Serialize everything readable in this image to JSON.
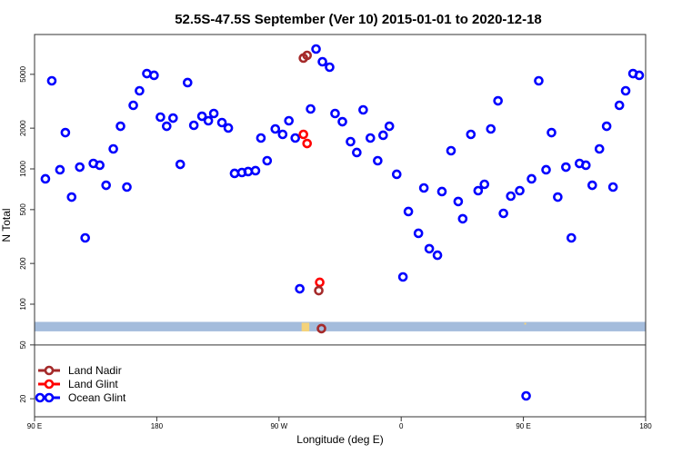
{
  "chart_data": {
    "type": "scatter",
    "title": "52.5S-47.5S September (Ver 10)   2015-01-01 to 2020-12-18",
    "xlabel": "Longitude (deg E)",
    "ylabel": "N Total",
    "xlim": [
      90,
      540
    ],
    "ylim": [
      14.7,
      9800
    ],
    "yscale": "log",
    "x_ticks": [
      {
        "value": 90,
        "label": "90 E"
      },
      {
        "value": 180,
        "label": "180"
      },
      {
        "value": 270,
        "label": "90 W"
      },
      {
        "value": 360,
        "label": "0"
      },
      {
        "value": 450,
        "label": "90 E"
      },
      {
        "value": 540,
        "label": "180"
      }
    ],
    "y_ticks": [
      {
        "value": 20,
        "label": "20"
      },
      {
        "value": 50,
        "label": "50"
      },
      {
        "value": 100,
        "label": "100"
      },
      {
        "value": 200,
        "label": "200"
      },
      {
        "value": 500,
        "label": "500"
      },
      {
        "value": 1000,
        "label": "1000"
      },
      {
        "value": 2000,
        "label": "2000"
      },
      {
        "value": 5000,
        "label": "5000"
      }
    ],
    "reference_line": 50,
    "band": {
      "range": [
        63,
        74
      ],
      "color": "#a4bcdc",
      "marker_color": "#f5d37a",
      "markers_lon": [
        288,
        289,
        290,
        291,
        452
      ]
    },
    "legend_position": "bottom-left",
    "series": [
      {
        "name": "Land Nadir",
        "color": "#a52a2a",
        "points": [
          [
            288,
            6590
          ],
          [
            290.7,
            6900
          ],
          [
            299.3,
            126
          ],
          [
            301.3,
            66
          ]
        ]
      },
      {
        "name": "Land Glint",
        "color": "#ff0000",
        "points": [
          [
            288,
            1799
          ],
          [
            290.7,
            1541
          ],
          [
            300,
            145
          ]
        ]
      },
      {
        "name": "Ocean Glint",
        "color": "#0000ff",
        "points": [
          [
            98,
            844
          ],
          [
            102.7,
            4477
          ],
          [
            108.7,
            985
          ],
          [
            112.7,
            1854
          ],
          [
            117.3,
            619
          ],
          [
            123.3,
            1031
          ],
          [
            127.3,
            309
          ],
          [
            133.3,
            1097
          ],
          [
            138,
            1064
          ],
          [
            142.7,
            757
          ],
          [
            148,
            1405
          ],
          [
            153.3,
            2067
          ],
          [
            158,
            734
          ],
          [
            162.7,
            2950
          ],
          [
            167.3,
            3777
          ],
          [
            172.7,
            5065
          ],
          [
            178,
            4914
          ],
          [
            182.7,
            2413
          ],
          [
            187.3,
            2067
          ],
          [
            192,
            2375
          ],
          [
            197.3,
            1080
          ],
          [
            202.7,
            4342
          ],
          [
            207.3,
            2100
          ],
          [
            213.3,
            2450
          ],
          [
            218,
            2268
          ],
          [
            222,
            2567
          ],
          [
            228,
            2199
          ],
          [
            232.7,
            2005
          ],
          [
            237.3,
            926
          ],
          [
            242.7,
            940
          ],
          [
            247.3,
            955
          ],
          [
            252.7,
            970
          ],
          [
            256.7,
            1691
          ],
          [
            261.3,
            1149
          ],
          [
            267.3,
            1974
          ],
          [
            272.7,
            1799
          ],
          [
            277.3,
            2268
          ],
          [
            282,
            1691
          ],
          [
            285.3,
            130
          ],
          [
            293.3,
            2773
          ],
          [
            297.3,
            7690
          ],
          [
            302,
            6194
          ],
          [
            307.3,
            5646
          ],
          [
            311.3,
            2567
          ],
          [
            316.7,
            2233
          ],
          [
            322.7,
            1590
          ],
          [
            327.3,
            1321
          ],
          [
            332,
            2731
          ],
          [
            337.3,
            1691
          ],
          [
            342.7,
            1149
          ],
          [
            346.7,
            1772
          ],
          [
            351.3,
            2067
          ],
          [
            356.7,
            912
          ],
          [
            361.3,
            159
          ],
          [
            365.3,
            484
          ],
          [
            372.7,
            334
          ],
          [
            376.7,
            723
          ],
          [
            380.7,
            257
          ],
          [
            386.7,
            230
          ],
          [
            390,
            680
          ],
          [
            396.7,
            1362
          ],
          [
            402,
            574
          ],
          [
            405.3,
            428
          ],
          [
            411.3,
            1799
          ],
          [
            416.7,
            690
          ],
          [
            421.3,
            769
          ],
          [
            426,
            1974
          ],
          [
            431.3,
            3186
          ],
          [
            435.3,
            469
          ],
          [
            440.7,
            629
          ],
          [
            447.3,
            690
          ],
          [
            452,
            21
          ],
          [
            456,
            844
          ],
          [
            461.3,
            4477
          ],
          [
            466.7,
            985
          ],
          [
            470.7,
            1854
          ],
          [
            475.3,
            619
          ],
          [
            481.3,
            1031
          ],
          [
            485.3,
            309
          ],
          [
            491.3,
            1097
          ],
          [
            496,
            1064
          ],
          [
            500.7,
            757
          ],
          [
            506,
            1405
          ],
          [
            511.3,
            2067
          ],
          [
            516,
            734
          ],
          [
            520.7,
            2950
          ],
          [
            525.3,
            3777
          ],
          [
            530.7,
            5065
          ],
          [
            535.3,
            4914
          ]
        ]
      }
    ]
  }
}
